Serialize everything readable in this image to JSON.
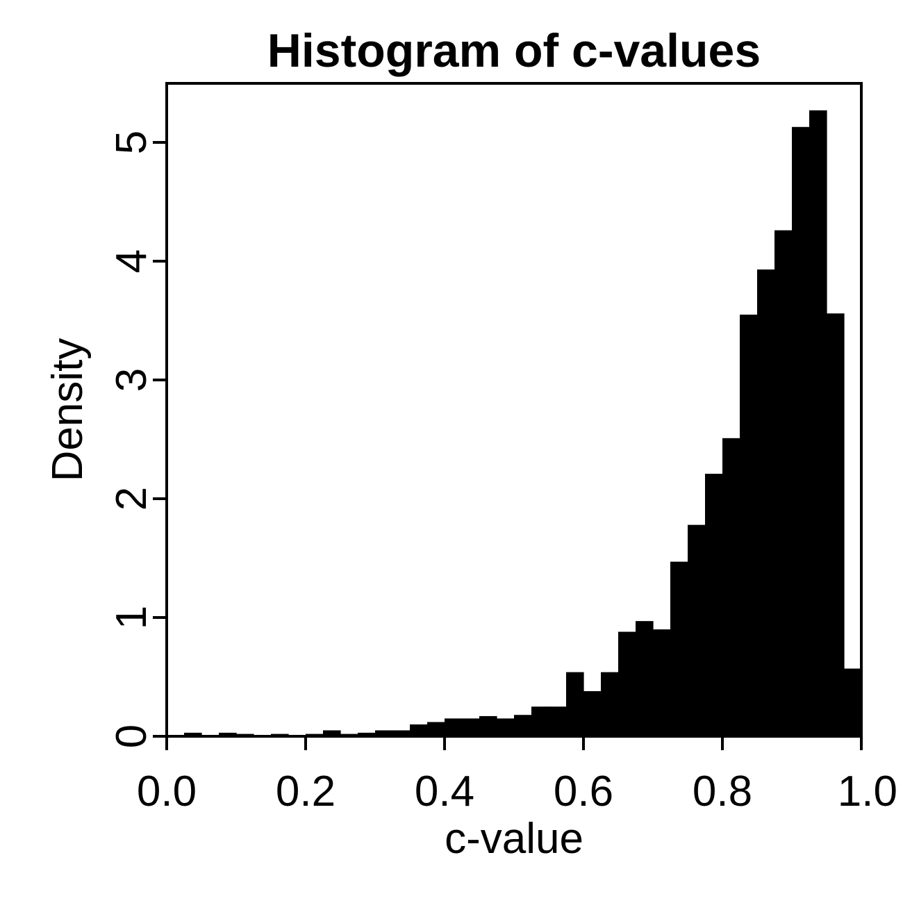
{
  "chart_data": {
    "type": "histogram",
    "title": "Histogram of c-values",
    "xlabel": "c-value",
    "ylabel": "Density",
    "xlim": [
      0.0,
      1.0
    ],
    "ylim": [
      0,
      5.5
    ],
    "x_ticks": [
      0.0,
      0.2,
      0.4,
      0.6,
      0.8,
      1.0
    ],
    "x_tick_labels": [
      "0.0",
      "0.2",
      "0.4",
      "0.6",
      "0.8",
      "1.0"
    ],
    "y_ticks": [
      0,
      1,
      2,
      3,
      4,
      5
    ],
    "y_tick_labels": [
      "0",
      "1",
      "2",
      "3",
      "4",
      "5"
    ],
    "bin_width": 0.025,
    "bin_starts": [
      0.0,
      0.025,
      0.05,
      0.075,
      0.1,
      0.125,
      0.15,
      0.175,
      0.2,
      0.225,
      0.25,
      0.275,
      0.3,
      0.325,
      0.35,
      0.375,
      0.4,
      0.425,
      0.45,
      0.475,
      0.5,
      0.525,
      0.55,
      0.575,
      0.6,
      0.625,
      0.65,
      0.675,
      0.7,
      0.725,
      0.75,
      0.775,
      0.8,
      0.825,
      0.85,
      0.875,
      0.9,
      0.925,
      0.95,
      0.975
    ],
    "values": [
      0.01,
      0.03,
      0.01,
      0.03,
      0.02,
      0.01,
      0.02,
      0.01,
      0.02,
      0.05,
      0.02,
      0.03,
      0.05,
      0.05,
      0.1,
      0.12,
      0.15,
      0.15,
      0.17,
      0.15,
      0.18,
      0.25,
      0.25,
      0.54,
      0.38,
      0.54,
      0.88,
      0.97,
      0.9,
      1.47,
      1.78,
      2.21,
      2.51,
      3.55,
      3.93,
      4.26,
      5.13,
      5.27,
      3.56,
      0.57
    ],
    "fill_color": "#000000",
    "grid": false,
    "legend": false
  }
}
